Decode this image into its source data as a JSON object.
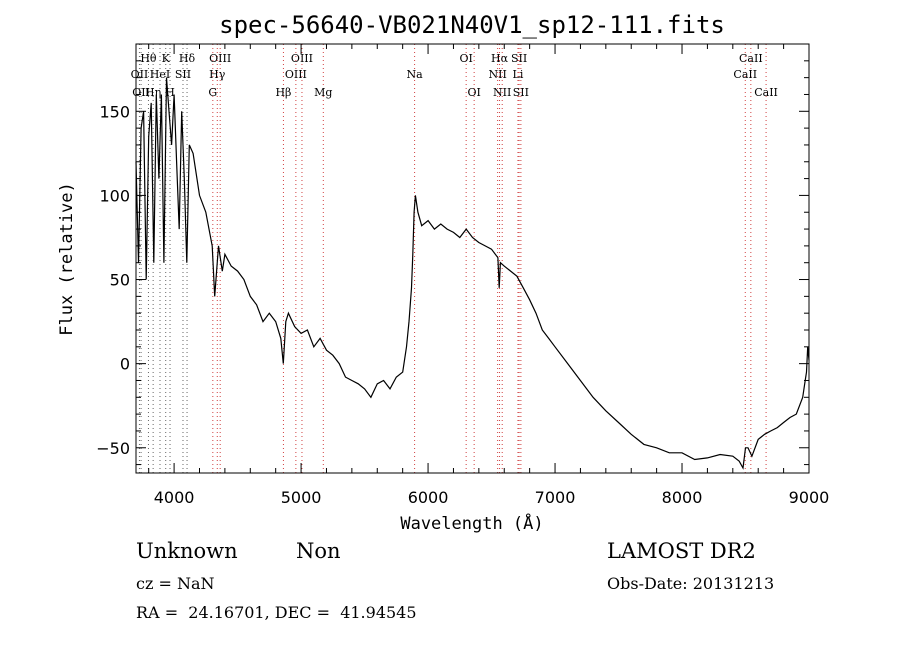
{
  "chart_data": {
    "type": "line",
    "title": "spec-56640-VB021N40V1_sp12-111.fits",
    "xlabel": "Wavelength (Å)",
    "ylabel": "Flux (relative)",
    "xlim": [
      3700,
      9000
    ],
    "ylim": [
      -65,
      190
    ],
    "xticks": [
      4000,
      5000,
      6000,
      7000,
      8000,
      9000
    ],
    "yticks": [
      -50,
      0,
      50,
      100,
      150
    ],
    "grid": false,
    "series": [
      {
        "x": [
          3700,
          3720,
          3740,
          3760,
          3780,
          3800,
          3820,
          3840,
          3860,
          3880,
          3900,
          3920,
          3940,
          3960,
          3980,
          4000,
          4020,
          4040,
          4060,
          4080,
          4100,
          4120,
          4150,
          4200,
          4250,
          4300,
          4320,
          4350,
          4380,
          4400,
          4450,
          4500,
          4550,
          4600,
          4650,
          4700,
          4750,
          4800,
          4840,
          4860,
          4880,
          4900,
          4950,
          5000,
          5050,
          5100,
          5150,
          5200,
          5250,
          5300,
          5350,
          5400,
          5450,
          5500,
          5550,
          5600,
          5650,
          5700,
          5750,
          5800,
          5830,
          5850,
          5870,
          5880,
          5890,
          5900,
          5920,
          5950,
          6000,
          6050,
          6100,
          6150,
          6200,
          6250,
          6300,
          6350,
          6400,
          6450,
          6500,
          6550,
          6560,
          6570,
          6600,
          6650,
          6700,
          6750,
          6800,
          6850,
          6900,
          6950,
          7000,
          7100,
          7200,
          7300,
          7400,
          7500,
          7600,
          7700,
          7800,
          7900,
          8000,
          8100,
          8200,
          8300,
          8400,
          8450,
          8480,
          8500,
          8520,
          8550,
          8600,
          8650,
          8700,
          8750,
          8800,
          8850,
          8900,
          8950,
          8970,
          8980,
          8990,
          9000
        ],
        "y": [
          120,
          60,
          140,
          150,
          50,
          135,
          155,
          60,
          160,
          110,
          160,
          60,
          170,
          150,
          130,
          160,
          120,
          80,
          150,
          110,
          60,
          130,
          125,
          100,
          90,
          70,
          40,
          70,
          55,
          65,
          58,
          55,
          50,
          40,
          35,
          25,
          30,
          25,
          15,
          0,
          25,
          30,
          22,
          18,
          20,
          10,
          15,
          8,
          5,
          0,
          -8,
          -10,
          -12,
          -15,
          -20,
          -12,
          -10,
          -15,
          -8,
          -5,
          10,
          25,
          45,
          65,
          90,
          100,
          90,
          82,
          85,
          80,
          83,
          80,
          78,
          75,
          80,
          75,
          72,
          70,
          68,
          63,
          45,
          60,
          58,
          55,
          52,
          45,
          38,
          30,
          20,
          15,
          10,
          0,
          -10,
          -20,
          -28,
          -35,
          -42,
          -48,
          -50,
          -53,
          -53,
          -57,
          -56,
          -54,
          -55,
          -58,
          -62,
          -50,
          -50,
          -55,
          -45,
          -42,
          -40,
          -38,
          -35,
          -32,
          -30,
          -20,
          -10,
          -5,
          10,
          2
        ]
      }
    ],
    "lines": [
      {
        "label": "Hθ",
        "x": 3798,
        "row": 1,
        "red": false
      },
      {
        "label": "OII",
        "x": 3727,
        "row": 2,
        "red": false
      },
      {
        "label": "OII",
        "x": 3740,
        "row": 3,
        "red": false
      },
      {
        "label": "Hη",
        "x": 3835,
        "row": 3,
        "red": false
      },
      {
        "label": "HeI",
        "x": 3889,
        "row": 2,
        "red": false
      },
      {
        "label": "K",
        "x": 3934,
        "row": 1,
        "red": false
      },
      {
        "label": "H",
        "x": 3968,
        "row": 3,
        "red": false
      },
      {
        "label": "Hδ",
        "x": 4102,
        "row": 1,
        "red": false
      },
      {
        "label": "SII",
        "x": 4070,
        "row": 2,
        "red": false
      },
      {
        "label": "OIII",
        "x": 4363,
        "row": 1,
        "red": true
      },
      {
        "label": "Hγ",
        "x": 4340,
        "row": 2,
        "red": true
      },
      {
        "label": "G",
        "x": 4305,
        "row": 3,
        "red": true
      },
      {
        "label": "Hβ",
        "x": 4861,
        "row": 3,
        "red": true
      },
      {
        "label": "OIII",
        "x": 4959,
        "row": 2,
        "red": true
      },
      {
        "label": "OIII",
        "x": 5007,
        "row": 1,
        "red": true
      },
      {
        "label": "Mg",
        "x": 5175,
        "row": 3,
        "red": true
      },
      {
        "label": "Na",
        "x": 5894,
        "row": 2,
        "red": true
      },
      {
        "label": "OI",
        "x": 6300,
        "row": 1,
        "red": true
      },
      {
        "label": "OI",
        "x": 6363,
        "row": 3,
        "red": true
      },
      {
        "label": "Hα",
        "x": 6563,
        "row": 1,
        "red": true
      },
      {
        "label": "NII",
        "x": 6548,
        "row": 2,
        "red": true
      },
      {
        "label": "NII",
        "x": 6584,
        "row": 3,
        "red": true
      },
      {
        "label": "SII",
        "x": 6717,
        "row": 1,
        "red": true
      },
      {
        "label": "Li",
        "x": 6708,
        "row": 2,
        "red": true
      },
      {
        "label": "SII",
        "x": 6731,
        "row": 3,
        "red": true
      },
      {
        "label": "CaII",
        "x": 8542,
        "row": 1,
        "red": true
      },
      {
        "label": "CaII",
        "x": 8498,
        "row": 2,
        "red": true
      },
      {
        "label": "CaII",
        "x": 8662,
        "row": 3,
        "red": true
      }
    ]
  },
  "footer": {
    "class_label": "Unknown",
    "subclass_label": "Non",
    "survey": "LAMOST DR2",
    "cz": "cz = NaN",
    "obs_date": "Obs-Date: 20131213",
    "coords": "RA =  24.16701, DEC =  41.94545"
  }
}
